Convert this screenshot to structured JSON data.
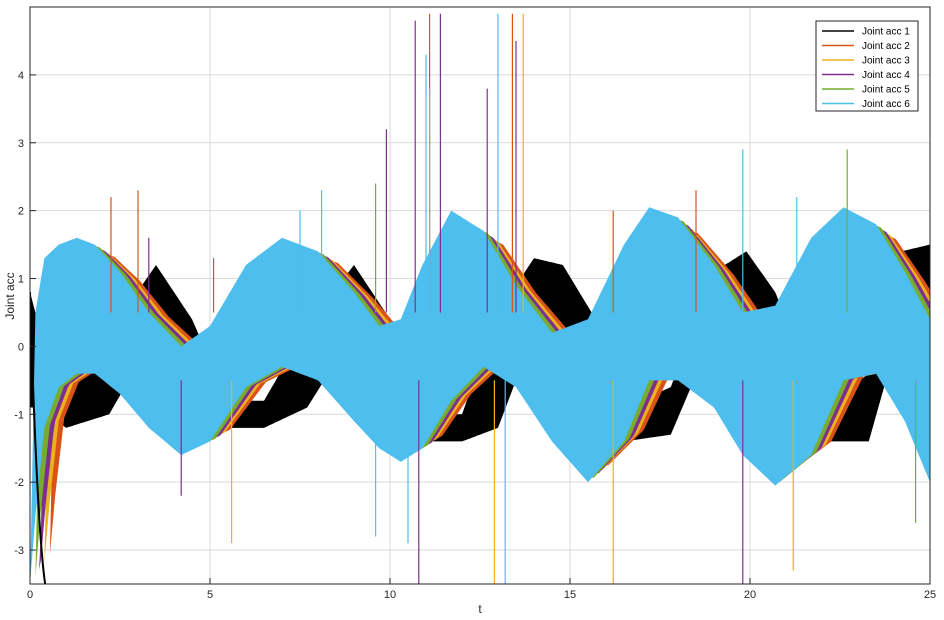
{
  "chart_data": {
    "type": "line",
    "title": "",
    "xlabel": "t",
    "ylabel": "Joint acc",
    "xlim": [
      0,
      25
    ],
    "ylim": [
      -3.5,
      5
    ],
    "xticks": [
      0,
      5,
      10,
      15,
      20,
      25
    ],
    "xtick_labels": [
      "0",
      "5",
      "10",
      "15",
      "20",
      "25"
    ],
    "yticks": [
      -3,
      -2,
      -1,
      0,
      1,
      2,
      3,
      4
    ],
    "ytick_labels": [
      "-3",
      "-2",
      "-1",
      "0",
      "1",
      "2",
      "3",
      "4"
    ],
    "grid": true,
    "legend_position": "top-right",
    "series": [
      {
        "name": "Joint acc 1",
        "color": "#000000",
        "phase": 0.9,
        "amp": 1.25,
        "band": [
          0.15,
          0.25
        ],
        "width": 0.45,
        "x": [
          0,
          0.3,
          1,
          2.2,
          3.5,
          4.5,
          5.5,
          6.5,
          7.7,
          9,
          10,
          11,
          12,
          13,
          14,
          14.8,
          15.6,
          16.5,
          17.8,
          19,
          19.9,
          20.7,
          22,
          23.3,
          24.2,
          25
        ],
        "upper": [
          0.8,
          0.2,
          -0.8,
          0.2,
          1.2,
          0.4,
          -0.8,
          -0.8,
          0.3,
          1.2,
          0.4,
          -1.0,
          -1.0,
          0.5,
          1.3,
          1.2,
          0.5,
          -0.9,
          -0.6,
          1.1,
          1.4,
          0.8,
          -0.9,
          -0.4,
          1.4,
          1.5
        ],
        "lower": [
          -0.9,
          -0.9,
          -1.2,
          -1.0,
          0.2,
          -0.2,
          -1.2,
          -1.2,
          -0.9,
          0.2,
          -0.4,
          -1.4,
          -1.4,
          -1.2,
          0.2,
          0.3,
          0.0,
          -1.4,
          -1.3,
          0.2,
          0.3,
          0.3,
          -1.4,
          -1.4,
          0.3,
          0.4
        ]
      },
      {
        "name": "Joint acc 2",
        "color": "#D95319",
        "phase": 0.55,
        "amp": 1.45,
        "x": [
          0,
          0.4,
          1,
          2,
          3,
          4.2,
          5.3,
          6.5,
          7.7,
          8.7,
          9.8,
          11,
          12.2,
          13.3,
          14.5,
          15.6,
          16.7,
          17.9,
          19.2,
          20.4,
          21.5,
          22.7,
          24,
          25
        ],
        "upper": [
          -3.5,
          -1.3,
          -0.3,
          1.1,
          1.4,
          0.1,
          -0.4,
          0.7,
          1.5,
          1.1,
          0.0,
          -0.6,
          0.6,
          1.8,
          1.3,
          0.1,
          0.3,
          1.9,
          1.8,
          0.4,
          -0.1,
          1.7,
          1.9,
          0.9
        ],
        "lower": [
          -3.5,
          -1.7,
          -0.6,
          0.7,
          0.9,
          -0.4,
          -0.9,
          0.2,
          1.1,
          0.6,
          -0.5,
          -1.1,
          0.1,
          1.3,
          0.8,
          -0.4,
          -0.2,
          1.4,
          1.3,
          -0.1,
          -0.6,
          1.2,
          1.4,
          0.4
        ]
      },
      {
        "name": "Joint acc 3",
        "color": "#EDB120",
        "phase": 0.4,
        "amp": 1.5
      },
      {
        "name": "Joint acc 4",
        "color": "#7E2F8E",
        "phase": 0.28,
        "amp": 1.55
      },
      {
        "name": "Joint acc 5",
        "color": "#77AC30",
        "phase": 0.15,
        "amp": 1.6
      },
      {
        "name": "Joint acc 6",
        "color": "#4DBEEE",
        "phase": 0.0,
        "amp": 1.65
      }
    ],
    "envelope_cyan": {
      "x": [
        0,
        0.15,
        0.4,
        0.8,
        1.3,
        1.8,
        2.5,
        3.3,
        4.2,
        5,
        6,
        7,
        8,
        9,
        9.7,
        10.3,
        10.9,
        11.7,
        12.6,
        13.5,
        14.5,
        15.5,
        16.5,
        17.2,
        18,
        19,
        19.8,
        20.7,
        21.7,
        22.6,
        23.5,
        24.3,
        25
      ],
      "upper": [
        -3.5,
        0.5,
        1.3,
        1.5,
        1.6,
        1.5,
        1.1,
        0.5,
        0.0,
        0.3,
        1.2,
        1.6,
        1.4,
        0.8,
        0.3,
        0.4,
        1.2,
        2.0,
        1.7,
        0.9,
        0.2,
        0.4,
        1.5,
        2.05,
        1.9,
        1.2,
        0.5,
        0.6,
        1.6,
        2.05,
        1.8,
        1.1,
        0.4
      ],
      "lower": [
        -3.5,
        -2.5,
        -1.2,
        -0.6,
        -0.4,
        -0.4,
        -0.7,
        -1.2,
        -1.6,
        -1.4,
        -0.6,
        -0.3,
        -0.5,
        -1.1,
        -1.5,
        -1.7,
        -1.5,
        -0.8,
        -0.3,
        -0.6,
        -1.4,
        -2.0,
        -1.4,
        -0.5,
        -0.5,
        -0.9,
        -1.6,
        -2.05,
        -1.6,
        -0.5,
        -0.4,
        -1.1,
        -2.0
      ]
    }
  }
}
